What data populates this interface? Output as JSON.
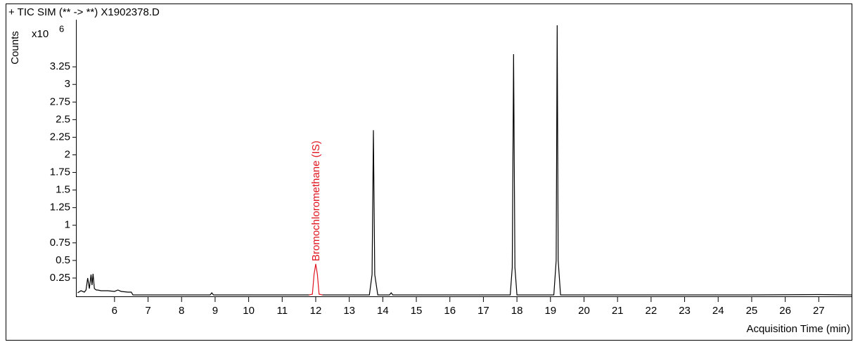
{
  "chart_data": {
    "type": "line",
    "title": "+ TIC SIM (** -> **) X1902378.D",
    "y_label": "Counts",
    "y_multiplier": {
      "base": "x10",
      "exponent": "6"
    },
    "x_label": "Acquisition Time (min)",
    "annotation": {
      "text": "Bromochloromethane (IS)",
      "x": 12.0,
      "color": "#e0141e"
    },
    "xlim": [
      4.85,
      28.0
    ],
    "ylim": [
      0,
      3.9
    ],
    "xticks": [
      6,
      7,
      8,
      9,
      10,
      11,
      12,
      13,
      14,
      15,
      16,
      17,
      18,
      19,
      20,
      21,
      22,
      23,
      24,
      25,
      26,
      27
    ],
    "yticks": [
      0.25,
      0.5,
      0.75,
      1,
      1.25,
      1.5,
      1.75,
      2,
      2.25,
      2.5,
      2.75,
      3,
      3.25
    ],
    "series": [
      {
        "color": "#000000",
        "x": [
          4.9,
          5.0,
          5.1,
          5.15,
          5.2,
          5.25,
          5.3,
          5.33,
          5.36,
          5.4,
          5.43,
          5.46,
          5.5,
          5.6,
          5.8,
          6.0,
          6.1,
          6.2,
          6.4,
          6.5,
          6.55,
          7.0,
          8.0,
          8.85,
          8.9,
          8.95,
          9.5,
          11.8,
          12.0,
          12.2,
          13.0,
          13.6,
          13.68,
          13.72,
          13.76,
          13.85,
          14.2,
          14.25,
          14.3,
          15,
          16,
          17.8,
          17.86,
          17.9,
          17.94,
          18.0,
          19.1,
          19.17,
          19.2,
          19.23,
          19.3,
          20,
          22,
          25,
          27,
          28
        ],
        "values": [
          0.04,
          0.07,
          0.05,
          0.08,
          0.25,
          0.1,
          0.3,
          0.15,
          0.31,
          0.1,
          0.09,
          0.08,
          0.08,
          0.07,
          0.07,
          0.06,
          0.08,
          0.06,
          0.05,
          0.05,
          0.01,
          0.01,
          0.01,
          0.01,
          0.04,
          0.01,
          0.01,
          0.01,
          null,
          0.01,
          0.01,
          0.01,
          0.3,
          2.35,
          0.3,
          0.01,
          0.01,
          0.04,
          0.01,
          0.01,
          0.01,
          0.01,
          0.4,
          3.43,
          0.4,
          0.01,
          0.01,
          0.5,
          3.84,
          0.5,
          0.01,
          0.01,
          0.01,
          0.01,
          0.015,
          0.01
        ]
      },
      {
        "color": "#e0141e",
        "x": [
          11.8,
          11.9,
          11.95,
          12.0,
          12.05,
          12.1,
          12.2
        ],
        "values": [
          0.01,
          0.02,
          0.3,
          0.45,
          0.3,
          0.02,
          0.01
        ]
      }
    ]
  }
}
